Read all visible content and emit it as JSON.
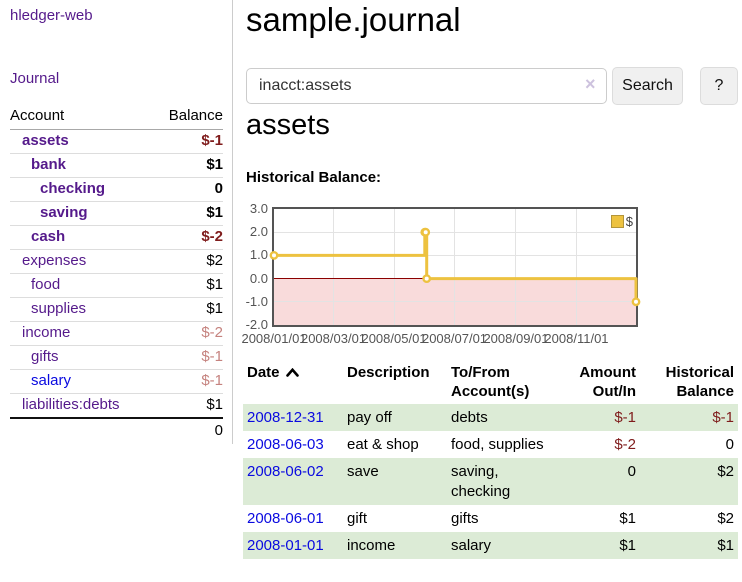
{
  "sidebar": {
    "brand": "hledger-web",
    "nav_journal": "Journal",
    "accounts_table": {
      "headers": [
        "Account",
        "Balance"
      ],
      "rows": [
        {
          "name": "assets",
          "depth": 1,
          "bold": true,
          "balance": "$-1",
          "balance_style": "neg-strong"
        },
        {
          "name": "bank",
          "depth": 2,
          "bold": true,
          "balance": "$1",
          "balance_style": ""
        },
        {
          "name": "checking",
          "depth": 3,
          "bold": true,
          "balance": "0",
          "balance_style": ""
        },
        {
          "name": "saving",
          "depth": 3,
          "bold": true,
          "balance": "$1",
          "balance_style": ""
        },
        {
          "name": "cash",
          "depth": 2,
          "bold": true,
          "balance": "$-2",
          "balance_style": "neg-strong"
        },
        {
          "name": "expenses",
          "depth": 1,
          "bold": false,
          "balance": "$2",
          "balance_style": ""
        },
        {
          "name": "food",
          "depth": 2,
          "bold": false,
          "balance": "$1",
          "balance_style": ""
        },
        {
          "name": "supplies",
          "depth": 2,
          "bold": false,
          "balance": "$1",
          "balance_style": ""
        },
        {
          "name": "income",
          "depth": 1,
          "bold": false,
          "balance": "$-2",
          "balance_style": "neg-light"
        },
        {
          "name": "gifts",
          "depth": 2,
          "bold": false,
          "balance": "$-1",
          "balance_style": "neg-light"
        },
        {
          "name": "salary",
          "depth": 2,
          "bold": false,
          "balance": "$-1",
          "balance_style": "neg-light",
          "link_blue": true
        },
        {
          "name": "liabilities:debts",
          "depth": 1,
          "bold": false,
          "balance": "$1",
          "balance_style": ""
        }
      ],
      "total": "0"
    }
  },
  "header": {
    "title": "sample.journal"
  },
  "search": {
    "value": "inacct:assets",
    "clear_icon": "×",
    "button_label": "Search",
    "help_label": "?"
  },
  "account_page": {
    "heading": "assets",
    "chart_label": "Historical Balance:"
  },
  "chart_data": {
    "type": "line",
    "title": "Historical Balance:",
    "steps": true,
    "xlim": [
      "2008-01-01",
      "2008-12-31"
    ],
    "ylim": [
      -2,
      3
    ],
    "y_ticks": [
      "3.0",
      "2.0",
      "1.0",
      "0.0",
      "-1.0",
      "-2.0"
    ],
    "x_ticks": [
      "2008/01/01",
      "2008/03/01",
      "2008/05/01",
      "2008/07/01",
      "2008/09/01",
      "2008/11/01"
    ],
    "grid": true,
    "legend_position": "top-right",
    "series": [
      {
        "name": "$",
        "color": "#edc240",
        "points": [
          [
            "2008-01-01",
            1
          ],
          [
            "2008-06-01",
            2
          ],
          [
            "2008-06-02",
            2
          ],
          [
            "2008-06-03",
            0
          ],
          [
            "2008-12-31",
            -1
          ]
        ]
      }
    ],
    "negative_region_color": "#f9dbdb",
    "zero_line_color": "#8b0000"
  },
  "register_table": {
    "headers": [
      "Date",
      "Description",
      "To/From Account(s)",
      "Amount Out/In",
      "Historical Balance"
    ],
    "rows": [
      {
        "date": "2008-12-31",
        "description": "pay off",
        "accounts": "debts",
        "amount": "$-1",
        "amount_neg": true,
        "balance": "$-1",
        "balance_neg": true
      },
      {
        "date": "2008-06-03",
        "description": "eat & shop",
        "accounts": "food, supplies",
        "amount": "$-2",
        "amount_neg": true,
        "balance": "0",
        "balance_neg": false
      },
      {
        "date": "2008-06-02",
        "description": "save",
        "accounts": "saving, checking",
        "amount": "0",
        "amount_neg": false,
        "balance": "$2",
        "balance_neg": false
      },
      {
        "date": "2008-06-01",
        "description": "gift",
        "accounts": "gifts",
        "amount": "$1",
        "amount_neg": false,
        "balance": "$2",
        "balance_neg": false
      },
      {
        "date": "2008-01-01",
        "description": "income",
        "accounts": "salary",
        "amount": "$1",
        "amount_neg": false,
        "balance": "$1",
        "balance_neg": false
      }
    ]
  },
  "colors": {
    "link_purple": "#551a8b",
    "link_blue": "#0a0ae0",
    "negative_strong": "#7f1c1c",
    "negative_light": "#c5827e",
    "row_stripe_green": "#dcebd6",
    "chart_gold": "#edc240",
    "chart_negative_pink": "#f9dbdb",
    "chart_zero_line": "#8b0000"
  }
}
